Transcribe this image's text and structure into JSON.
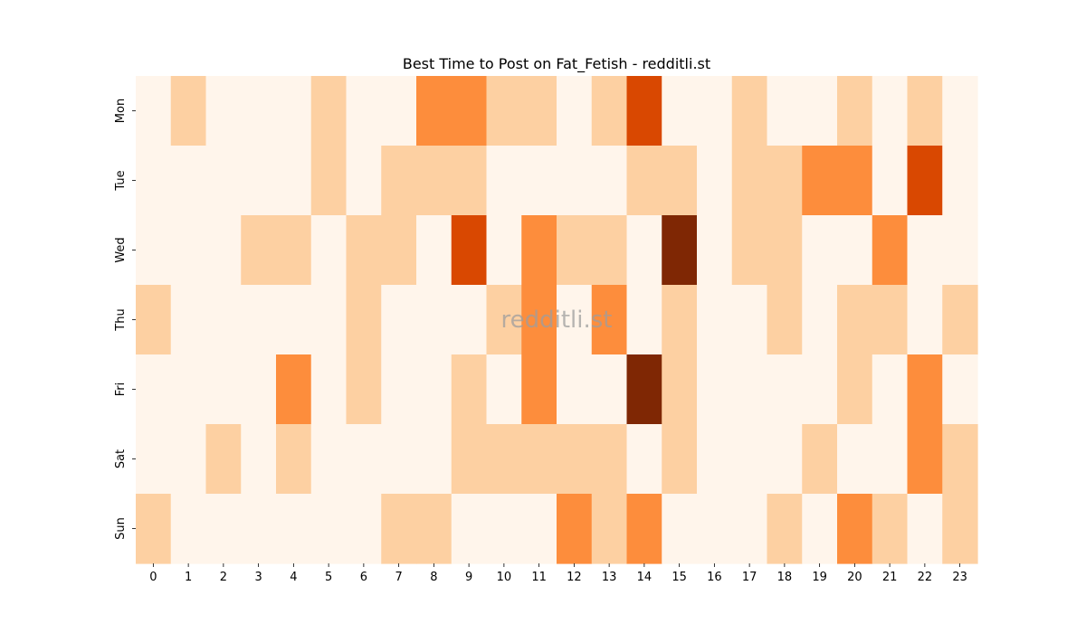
{
  "chart_data": {
    "type": "heatmap",
    "title": "Best Time to Post on Fat_Fetish - redditli.st",
    "watermark": "redditli.st",
    "xlabel": "",
    "ylabel": "",
    "x_categories": [
      "0",
      "1",
      "2",
      "3",
      "4",
      "5",
      "6",
      "7",
      "8",
      "9",
      "10",
      "11",
      "12",
      "13",
      "14",
      "15",
      "16",
      "17",
      "18",
      "19",
      "20",
      "21",
      "22",
      "23"
    ],
    "y_categories": [
      "Mon",
      "Tue",
      "Wed",
      "Thu",
      "Fri",
      "Sat",
      "Sun"
    ],
    "values": [
      [
        0,
        1,
        0,
        0,
        0,
        1,
        0,
        0,
        2,
        2,
        1,
        1,
        0,
        1,
        3,
        0,
        0,
        1,
        0,
        0,
        1,
        0,
        1,
        0
      ],
      [
        0,
        0,
        0,
        0,
        0,
        1,
        0,
        1,
        1,
        1,
        0,
        0,
        0,
        0,
        1,
        1,
        0,
        1,
        1,
        2,
        2,
        0,
        3,
        0
      ],
      [
        0,
        0,
        0,
        1,
        1,
        0,
        1,
        1,
        0,
        3,
        0,
        2,
        1,
        1,
        0,
        4,
        0,
        1,
        1,
        0,
        0,
        2,
        0,
        0
      ],
      [
        1,
        0,
        0,
        0,
        0,
        0,
        1,
        0,
        0,
        0,
        1,
        2,
        0,
        2,
        0,
        1,
        0,
        0,
        1,
        0,
        1,
        1,
        0,
        1
      ],
      [
        0,
        0,
        0,
        0,
        2,
        0,
        1,
        0,
        0,
        1,
        0,
        2,
        0,
        0,
        4,
        1,
        0,
        0,
        0,
        0,
        1,
        0,
        2,
        0
      ],
      [
        0,
        0,
        1,
        0,
        1,
        0,
        0,
        0,
        0,
        1,
        1,
        1,
        1,
        1,
        0,
        1,
        0,
        0,
        0,
        1,
        0,
        0,
        2,
        1
      ],
      [
        1,
        0,
        0,
        0,
        0,
        0,
        0,
        1,
        1,
        0,
        0,
        0,
        2,
        1,
        2,
        0,
        0,
        0,
        1,
        0,
        2,
        1,
        0,
        1
      ]
    ],
    "color_scale": [
      "#fff5eb",
      "#fdd0a2",
      "#fd8d3c",
      "#d94801",
      "#7f2704"
    ],
    "colormap": "Oranges",
    "colorbar": false,
    "grid": false,
    "legend": "none"
  }
}
